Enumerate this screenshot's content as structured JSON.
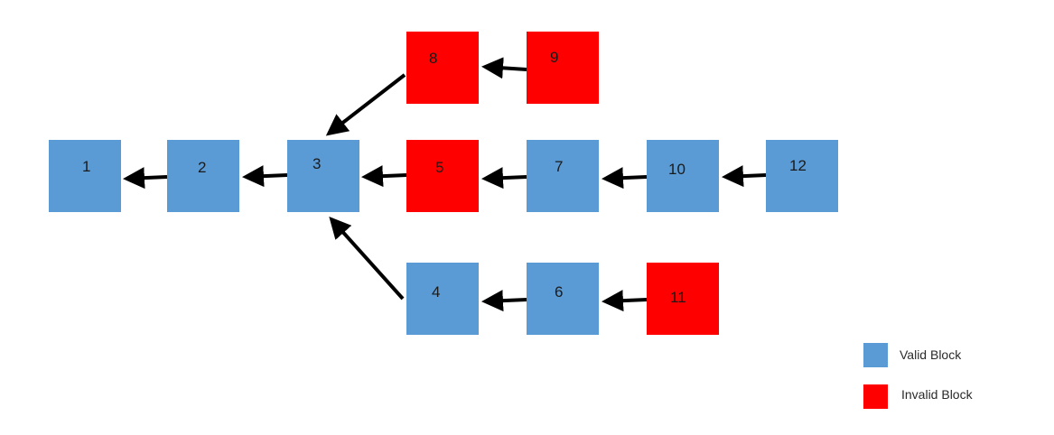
{
  "colors": {
    "valid": "#5b9bd5",
    "invalid": "#ff0000",
    "arrow": "#000000"
  },
  "blocks": [
    {
      "id": "1",
      "label": "1",
      "status": "valid"
    },
    {
      "id": "2",
      "label": "2",
      "status": "valid"
    },
    {
      "id": "3",
      "label": "3",
      "status": "valid"
    },
    {
      "id": "4",
      "label": "4",
      "status": "valid"
    },
    {
      "id": "5",
      "label": "5",
      "status": "invalid"
    },
    {
      "id": "6",
      "label": "6",
      "status": "valid"
    },
    {
      "id": "7",
      "label": "7",
      "status": "valid"
    },
    {
      "id": "8",
      "label": "8",
      "status": "invalid"
    },
    {
      "id": "9",
      "label": "9",
      "status": "invalid"
    },
    {
      "id": "10",
      "label": "10",
      "status": "valid"
    },
    {
      "id": "11",
      "label": "11",
      "status": "invalid"
    },
    {
      "id": "12",
      "label": "12",
      "status": "valid"
    }
  ],
  "edges": [
    {
      "from": "2",
      "to": "1"
    },
    {
      "from": "3",
      "to": "2"
    },
    {
      "from": "5",
      "to": "3"
    },
    {
      "from": "7",
      "to": "5"
    },
    {
      "from": "10",
      "to": "7"
    },
    {
      "from": "12",
      "to": "10"
    },
    {
      "from": "8",
      "to": "3"
    },
    {
      "from": "9",
      "to": "8"
    },
    {
      "from": "4",
      "to": "3"
    },
    {
      "from": "6",
      "to": "4"
    },
    {
      "from": "11",
      "to": "6"
    }
  ],
  "legend": {
    "valid_label": "Valid Block",
    "invalid_label": "Invalid Block"
  }
}
